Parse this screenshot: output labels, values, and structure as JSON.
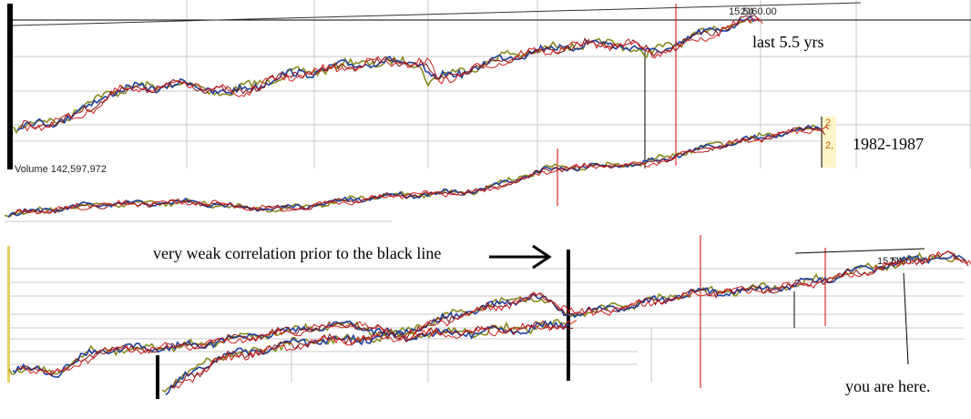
{
  "panel_top": {
    "price_label_a": "15.54",
    "price_label_b": "2160.00",
    "annotation": "last 5.5 yrs",
    "volume": "Volume 142,597,972"
  },
  "panel_middle": {
    "annotation": "1982-1987",
    "axis_label_a": "2",
    "axis_label_b": "2,"
  },
  "panel_bottom": {
    "annotation": "very weak correlation prior to the black line",
    "price_label_a": "15.54",
    "price_label_b": "2160.00",
    "marker": "you are here."
  }
}
